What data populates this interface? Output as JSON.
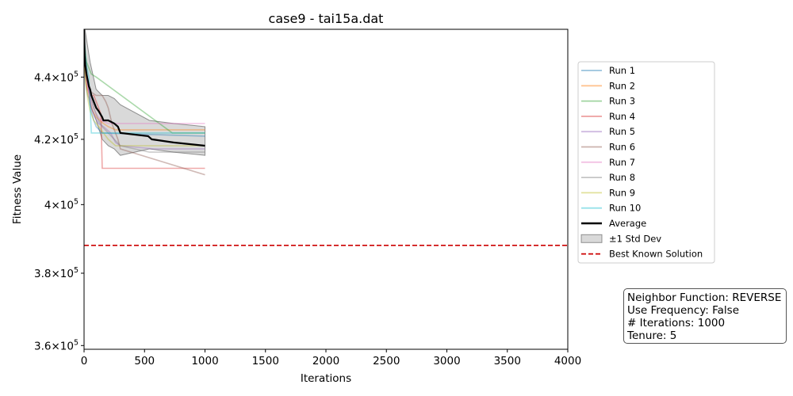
{
  "chart_data": {
    "type": "line",
    "title": "case9 - tai15a.dat",
    "xlabel": "Iterations",
    "ylabel": "Fitness Value",
    "xlim": [
      0,
      4000
    ],
    "ylim": [
      359000,
      456000
    ],
    "yscale": "log",
    "xticks": [
      0,
      500,
      1000,
      1500,
      2000,
      2500,
      3000,
      3500,
      4000
    ],
    "yticks": [
      {
        "value": 360000,
        "label_base": "3.6",
        "label_exp": "5"
      },
      {
        "value": 380000,
        "label_base": "3.8",
        "label_exp": "5"
      },
      {
        "value": 400000,
        "label_base": "4",
        "label_exp": "5"
      },
      {
        "value": 420000,
        "label_base": "4.2",
        "label_exp": "5"
      },
      {
        "value": 440000,
        "label_base": "4.4",
        "label_exp": "5"
      }
    ],
    "tick_times": "×10",
    "legend_position": "right",
    "series": [
      {
        "name": "Run 1",
        "color": "#1f77b4",
        "x": [
          0,
          10,
          20,
          30,
          40,
          50,
          60,
          80,
          100,
          150,
          1000
        ],
        "y": [
          455000,
          440000,
          436000,
          434000,
          433000,
          431000,
          429000,
          426000,
          424000,
          422000,
          421000
        ]
      },
      {
        "name": "Run 2",
        "color": "#ff7f0e",
        "x": [
          0,
          10,
          20,
          30,
          50,
          70,
          100,
          130,
          160,
          200,
          260,
          1000
        ],
        "y": [
          450000,
          441000,
          437000,
          435000,
          432000,
          429000,
          427000,
          426000,
          425000,
          424000,
          423000,
          423000
        ]
      },
      {
        "name": "Run 3",
        "color": "#2ca02c",
        "x": [
          0,
          20,
          40,
          60,
          100,
          730,
          1000
        ],
        "y": [
          452000,
          445000,
          443000,
          441000,
          440000,
          422000,
          422000
        ]
      },
      {
        "name": "Run 4",
        "color": "#d62728",
        "x": [
          0,
          15,
          30,
          50,
          80,
          100,
          120,
          140,
          150,
          1000
        ],
        "y": [
          448000,
          440000,
          436000,
          434000,
          434000,
          432000,
          430000,
          428000,
          411000,
          411000
        ]
      },
      {
        "name": "Run 5",
        "color": "#9467bd",
        "x": [
          0,
          20,
          40,
          60,
          90,
          120,
          160,
          220,
          260,
          300,
          580,
          1000
        ],
        "y": [
          450000,
          440000,
          435000,
          430000,
          427000,
          425000,
          424000,
          422000,
          419000,
          418000,
          417000,
          417000
        ]
      },
      {
        "name": "Run 6",
        "color": "#8c564b",
        "x": [
          0,
          20,
          40,
          60,
          100,
          150,
          180,
          200,
          230,
          280,
          300,
          1000
        ],
        "y": [
          451000,
          440000,
          437000,
          435000,
          434000,
          434000,
          432000,
          430000,
          425000,
          420000,
          417000,
          409000
        ]
      },
      {
        "name": "Run 7",
        "color": "#e377c2",
        "x": [
          0,
          20,
          40,
          60,
          80,
          100,
          140,
          200,
          1000
        ],
        "y": [
          448000,
          439000,
          435000,
          432000,
          430000,
          428000,
          426000,
          425000,
          425000
        ]
      },
      {
        "name": "Run 8",
        "color": "#7f7f7f",
        "x": [
          0,
          20,
          40,
          60,
          80,
          100,
          120,
          150,
          200,
          300,
          540,
          1000
        ],
        "y": [
          452000,
          442000,
          437000,
          433000,
          430000,
          428000,
          426000,
          424000,
          422000,
          418000,
          416000,
          416000
        ]
      },
      {
        "name": "Run 9",
        "color": "#bcbd22",
        "x": [
          0,
          15,
          30,
          50,
          80,
          120,
          160,
          200,
          260,
          1000
        ],
        "y": [
          447000,
          438000,
          433000,
          429000,
          426000,
          424000,
          422000,
          420000,
          418000,
          418000
        ]
      },
      {
        "name": "Run 10",
        "color": "#17becf",
        "x": [
          0,
          10,
          20,
          40,
          60,
          1000
        ],
        "y": [
          455000,
          448000,
          444000,
          440000,
          422000,
          422000
        ]
      }
    ],
    "average": {
      "name": "Average",
      "color": "#000000",
      "x": [
        0,
        5,
        10,
        20,
        30,
        40,
        50,
        60,
        80,
        100,
        120,
        150,
        160,
        180,
        200,
        250,
        280,
        300,
        530,
        560,
        740,
        1000
      ],
      "y": [
        456000,
        447000,
        444000,
        441000,
        439000,
        437000,
        436000,
        434000,
        432000,
        430000,
        429000,
        427000,
        426000,
        426000,
        426000,
        425000,
        424000,
        422000,
        421000,
        420000,
        419000,
        418000
      ]
    },
    "std_band": {
      "name": "±1 Std Dev",
      "color": "#808080",
      "x": [
        0,
        50,
        100,
        150,
        200,
        250,
        300,
        540,
        740,
        1000
      ],
      "upper": [
        458000,
        445000,
        436000,
        434000,
        434000,
        433000,
        431000,
        426000,
        425000,
        424000
      ],
      "lower": [
        452000,
        431000,
        426000,
        420000,
        418000,
        417000,
        415000,
        417000,
        416000,
        415000
      ]
    },
    "reference_line": {
      "name": "Best Known Solution",
      "value": 388000,
      "color": "#cc0000"
    }
  },
  "info_box": {
    "line1": "Neighbor Function: REVERSE",
    "line2": "Use Frequency: False",
    "line3": "# Iterations: 1000",
    "line4": "Tenure: 5"
  }
}
